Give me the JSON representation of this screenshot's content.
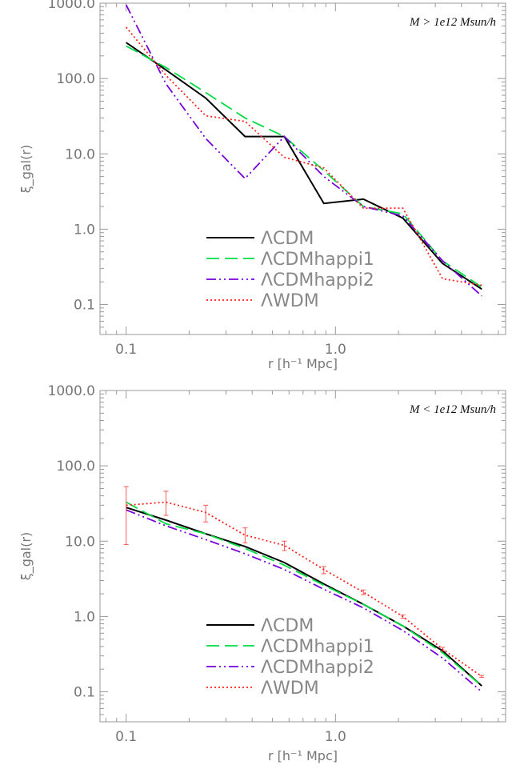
{
  "chart_data": [
    {
      "type": "line",
      "annotation": "M > 1e12 Msun/h",
      "xlabel": "r [h⁻¹ Mpc]",
      "ylabel": "ξ_gal(r)",
      "xscale": "log",
      "yscale": "log",
      "xlim": [
        0.075,
        6.5
      ],
      "ylim": [
        0.04,
        1000
      ],
      "xticks": [
        {
          "v": 0.1,
          "label": "0.1"
        },
        {
          "v": 1.0,
          "label": "1.0"
        }
      ],
      "yticks": [
        {
          "v": 0.1,
          "label": "0.1"
        },
        {
          "v": 1,
          "label": "1.0"
        },
        {
          "v": 10,
          "label": "10.0"
        },
        {
          "v": 100,
          "label": "100.0"
        },
        {
          "v": 1000,
          "label": "1000.0"
        }
      ],
      "legend_position": "bottom-center",
      "series": [
        {
          "name": "ΛCDM",
          "color": "#000000",
          "dash": "solid",
          "x": [
            0.1,
            0.155,
            0.24,
            0.37,
            0.57,
            0.88,
            1.36,
            2.1,
            3.25,
            5.0
          ],
          "y": [
            300,
            130,
            55,
            17,
            17,
            2.2,
            2.5,
            1.4,
            0.35,
            0.16
          ]
        },
        {
          "name": "ΛCDMhappi1",
          "color": "#00dd44",
          "dash": "dashed",
          "x": [
            0.1,
            0.155,
            0.24,
            0.37,
            0.57,
            0.88,
            1.36,
            2.1,
            3.25,
            5.0
          ],
          "y": [
            270,
            140,
            65,
            30,
            17,
            6,
            2,
            1.6,
            0.38,
            0.17
          ]
        },
        {
          "name": "ΛCDMhappi2",
          "color": "#7700dd",
          "dash": "dashdotdot",
          "x": [
            0.1,
            0.155,
            0.24,
            0.37,
            0.57,
            0.88,
            1.36,
            2.1,
            3.25,
            5.0
          ],
          "y": [
            950,
            85,
            16,
            4.7,
            17,
            5,
            2,
            1.5,
            0.38,
            0.13
          ]
        },
        {
          "name": "ΛWDM",
          "color": "#ff2222",
          "dash": "dotted",
          "x": [
            0.1,
            0.155,
            0.24,
            0.37,
            0.57,
            0.88,
            1.36,
            2.1,
            3.25,
            5.0
          ],
          "y": [
            480,
            110,
            32,
            27,
            9,
            6.5,
            1.9,
            1.9,
            0.22,
            0.18
          ]
        }
      ]
    },
    {
      "type": "line",
      "annotation": "M < 1e12 Msun/h",
      "xlabel": "r [h⁻¹ Mpc]",
      "ylabel": "ξ_gal(r)",
      "xscale": "log",
      "yscale": "log",
      "xlim": [
        0.075,
        6.5
      ],
      "ylim": [
        0.04,
        1000
      ],
      "xticks": [
        {
          "v": 0.1,
          "label": "0.1"
        },
        {
          "v": 1.0,
          "label": "1.0"
        }
      ],
      "yticks": [
        {
          "v": 0.1,
          "label": "0.1"
        },
        {
          "v": 1,
          "label": "1.0"
        },
        {
          "v": 10,
          "label": "10.0"
        },
        {
          "v": 100,
          "label": "100.0"
        },
        {
          "v": 1000,
          "label": "1000.0"
        }
      ],
      "legend_position": "bottom-center",
      "series": [
        {
          "name": "ΛCDM",
          "color": "#000000",
          "dash": "solid",
          "x": [
            0.1,
            0.155,
            0.24,
            0.37,
            0.57,
            0.88,
            1.36,
            2.1,
            3.25,
            5.0
          ],
          "y": [
            28,
            19,
            12.5,
            8.5,
            5.2,
            2.7,
            1.45,
            0.75,
            0.35,
            0.12
          ]
        },
        {
          "name": "ΛCDMhappi1",
          "color": "#00dd44",
          "dash": "dashed",
          "x": [
            0.1,
            0.155,
            0.24,
            0.37,
            0.57,
            0.88,
            1.36,
            2.1,
            3.25,
            5.0
          ],
          "y": [
            33,
            17,
            12.5,
            8,
            4.8,
            2.6,
            1.45,
            0.75,
            0.33,
            0.12
          ]
        },
        {
          "name": "ΛCDMhappi2",
          "color": "#7700dd",
          "dash": "dashdotdot",
          "x": [
            0.1,
            0.155,
            0.24,
            0.37,
            0.57,
            0.88,
            1.36,
            2.1,
            3.25,
            5.0
          ],
          "y": [
            26,
            16,
            10.5,
            6.8,
            4.2,
            2.3,
            1.3,
            0.65,
            0.28,
            0.1
          ]
        },
        {
          "name": "ΛWDM",
          "color": "#ff2222",
          "dash": "dotted",
          "x": [
            0.1,
            0.155,
            0.24,
            0.37,
            0.57,
            0.88,
            1.36,
            2.1,
            3.25,
            5.0
          ],
          "y": [
            30,
            33,
            24,
            12,
            8.8,
            4.2,
            2.1,
            1.0,
            0.37,
            0.16
          ],
          "err_low": [
            9,
            22,
            18,
            9.5,
            7.5,
            3.7,
            1.95,
            0.95,
            0.35,
            0.155
          ],
          "err_high": [
            53,
            46,
            30,
            15,
            10,
            4.6,
            2.25,
            1.05,
            0.39,
            0.165
          ]
        }
      ]
    }
  ]
}
